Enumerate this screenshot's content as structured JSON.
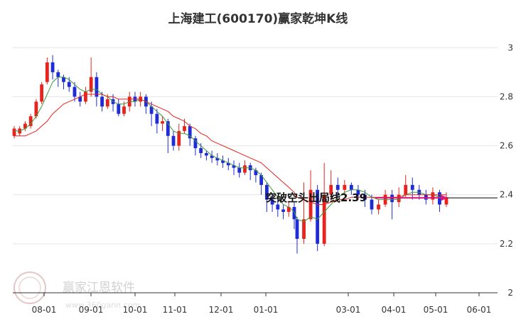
{
  "chart_data": {
    "type": "candlestick",
    "title": "上海建工(600170)赢家乾坤K线",
    "xlabel": "",
    "ylabel": "",
    "ylim": [
      2.0,
      3.05
    ],
    "y_ticks": [
      2,
      2.2,
      2.4,
      2.6,
      2.8,
      3
    ],
    "y_tick_labels": [
      "2",
      "2.2",
      "2.4",
      "2.6",
      "2.8",
      "3"
    ],
    "x_ticks": [
      "08-01",
      "09-01",
      "10-01",
      "11-01",
      "12-01",
      "01-01",
      "03-01",
      "04-01",
      "05-01",
      "06-01"
    ],
    "grid": true,
    "colors": {
      "up": "#e8231e",
      "down": "#1e2bd6",
      "ma_short": "#3a9a3a",
      "ma_long": "#e8231e",
      "signal": "#e0157a",
      "level": "#000000"
    },
    "series": [
      {
        "name": "",
        "values": [
          [
            2.64,
            2.67,
            2.63,
            2.68
          ],
          [
            2.65,
            2.67,
            2.64,
            2.68
          ],
          [
            2.67,
            2.69,
            2.66,
            2.7
          ],
          [
            2.68,
            2.72,
            2.67,
            2.73
          ],
          [
            2.72,
            2.78,
            2.71,
            2.79
          ],
          [
            2.78,
            2.85,
            2.77,
            2.86
          ],
          [
            2.86,
            2.94,
            2.85,
            2.96
          ],
          [
            2.94,
            2.9,
            2.87,
            2.97
          ],
          [
            2.9,
            2.88,
            2.84,
            2.91
          ],
          [
            2.88,
            2.86,
            2.83,
            2.89
          ],
          [
            2.86,
            2.84,
            2.82,
            2.88
          ],
          [
            2.84,
            2.8,
            2.78,
            2.86
          ],
          [
            2.8,
            2.78,
            2.76,
            2.82
          ],
          [
            2.78,
            2.82,
            2.77,
            2.84
          ],
          [
            2.82,
            2.88,
            2.8,
            2.96
          ],
          [
            2.88,
            2.8,
            2.76,
            2.9
          ],
          [
            2.8,
            2.76,
            2.74,
            2.82
          ],
          [
            2.76,
            2.79,
            2.75,
            2.81
          ],
          [
            2.79,
            2.77,
            2.74,
            2.81
          ],
          [
            2.77,
            2.73,
            2.72,
            2.79
          ],
          [
            2.73,
            2.76,
            2.72,
            2.78
          ],
          [
            2.76,
            2.8,
            2.74,
            2.82
          ],
          [
            2.8,
            2.78,
            2.76,
            2.82
          ],
          [
            2.78,
            2.8,
            2.76,
            2.82
          ],
          [
            2.8,
            2.76,
            2.73,
            2.81
          ],
          [
            2.76,
            2.73,
            2.68,
            2.78
          ],
          [
            2.73,
            2.69,
            2.65,
            2.75
          ],
          [
            2.69,
            2.7,
            2.66,
            2.72
          ],
          [
            2.7,
            2.64,
            2.57,
            2.71
          ],
          [
            2.64,
            2.6,
            2.58,
            2.66
          ],
          [
            2.6,
            2.66,
            2.58,
            2.69
          ],
          [
            2.66,
            2.68,
            2.65,
            2.71
          ],
          [
            2.68,
            2.63,
            2.6,
            2.69
          ],
          [
            2.63,
            2.59,
            2.56,
            2.64
          ],
          [
            2.59,
            2.57,
            2.55,
            2.61
          ],
          [
            2.57,
            2.56,
            2.54,
            2.58
          ],
          [
            2.56,
            2.55,
            2.53,
            2.58
          ],
          [
            2.55,
            2.54,
            2.52,
            2.57
          ],
          [
            2.54,
            2.53,
            2.51,
            2.56
          ],
          [
            2.53,
            2.52,
            2.5,
            2.55
          ],
          [
            2.52,
            2.51,
            2.48,
            2.54
          ],
          [
            2.51,
            2.49,
            2.47,
            2.53
          ],
          [
            2.49,
            2.52,
            2.48,
            2.54
          ],
          [
            2.52,
            2.5,
            2.46,
            2.53
          ],
          [
            2.5,
            2.48,
            2.45,
            2.51
          ],
          [
            2.48,
            2.44,
            2.4,
            2.49
          ],
          [
            2.44,
            2.38,
            2.33,
            2.45
          ],
          [
            2.38,
            2.36,
            2.33,
            2.4
          ],
          [
            2.36,
            2.34,
            2.31,
            2.38
          ],
          [
            2.34,
            2.33,
            2.3,
            2.36
          ],
          [
            2.33,
            2.35,
            2.31,
            2.37
          ],
          [
            2.35,
            2.3,
            2.26,
            2.37
          ],
          [
            2.3,
            2.22,
            2.16,
            2.31
          ],
          [
            2.22,
            2.3,
            2.2,
            2.45
          ],
          [
            2.3,
            2.42,
            2.29,
            2.5
          ],
          [
            2.42,
            2.2,
            2.17,
            2.44
          ],
          [
            2.2,
            2.4,
            2.19,
            2.53
          ],
          [
            2.4,
            2.44,
            2.38,
            2.5
          ],
          [
            2.44,
            2.42,
            2.39,
            2.47
          ],
          [
            2.42,
            2.44,
            2.4,
            2.46
          ],
          [
            2.44,
            2.42,
            2.4,
            2.45
          ],
          [
            2.42,
            2.4,
            2.38,
            2.44
          ],
          [
            2.4,
            2.38,
            2.35,
            2.42
          ],
          [
            2.38,
            2.34,
            2.32,
            2.4
          ],
          [
            2.34,
            2.36,
            2.32,
            2.38
          ],
          [
            2.36,
            2.4,
            2.35,
            2.42
          ],
          [
            2.4,
            2.37,
            2.3,
            2.42
          ],
          [
            2.37,
            2.4,
            2.35,
            2.43
          ],
          [
            2.4,
            2.44,
            2.39,
            2.48
          ],
          [
            2.44,
            2.42,
            2.38,
            2.47
          ],
          [
            2.42,
            2.4,
            2.38,
            2.44
          ],
          [
            2.4,
            2.38,
            2.36,
            2.42
          ],
          [
            2.38,
            2.41,
            2.36,
            2.43
          ],
          [
            2.41,
            2.36,
            2.33,
            2.42
          ],
          [
            2.36,
            2.39,
            2.35,
            2.41
          ]
        ]
      },
      {
        "name": "",
        "values": [
          2.66,
          2.66,
          2.67,
          2.69,
          2.72,
          2.76,
          2.81,
          2.86,
          2.88,
          2.88,
          2.87,
          2.85,
          2.83,
          2.82,
          2.83,
          2.83,
          2.81,
          2.8,
          2.78,
          2.77,
          2.77,
          2.78,
          2.78,
          2.79,
          2.78,
          2.76,
          2.74,
          2.72,
          2.69,
          2.66,
          2.65,
          2.65,
          2.64,
          2.62,
          2.6,
          2.58,
          2.56,
          2.55,
          2.54,
          2.53,
          2.52,
          2.51,
          2.51,
          2.51,
          2.5,
          2.48,
          2.45,
          2.42,
          2.39,
          2.36,
          2.35,
          2.33,
          2.3,
          2.29,
          2.31,
          2.3,
          2.33,
          2.36,
          2.39,
          2.41,
          2.42,
          2.42,
          2.41,
          2.39,
          2.38,
          2.38,
          2.38,
          2.38,
          2.4,
          2.41,
          2.41,
          2.4,
          2.4,
          2.39,
          2.39
        ]
      },
      {
        "name": "",
        "values": [
          2.64,
          2.64,
          2.64,
          2.65,
          2.66,
          2.68,
          2.7,
          2.73,
          2.75,
          2.77,
          2.78,
          2.79,
          2.8,
          2.81,
          2.81,
          2.81,
          2.81,
          2.8,
          2.8,
          2.79,
          2.79,
          2.79,
          2.79,
          2.79,
          2.78,
          2.77,
          2.76,
          2.75,
          2.74,
          2.72,
          2.71,
          2.7,
          2.68,
          2.67,
          2.65,
          2.64,
          2.62,
          2.61,
          2.6,
          2.59,
          2.58,
          2.57,
          2.56,
          2.55,
          2.54,
          2.53,
          2.51,
          2.49,
          2.47,
          2.45,
          2.43,
          2.41,
          2.39,
          2.38,
          2.37,
          2.36,
          2.36,
          2.37,
          2.38,
          2.38,
          2.39,
          2.39,
          2.39,
          2.39,
          2.39,
          2.39,
          2.39,
          2.39,
          2.4,
          2.4,
          2.4,
          2.4,
          2.4,
          2.4,
          2.4
        ]
      }
    ],
    "annotations": [
      {
        "text": "突破空头出局线2.39",
        "value": 2.39
      }
    ]
  },
  "watermark": {
    "name": "赢家江恩软件",
    "url": "www.360gann.com"
  }
}
